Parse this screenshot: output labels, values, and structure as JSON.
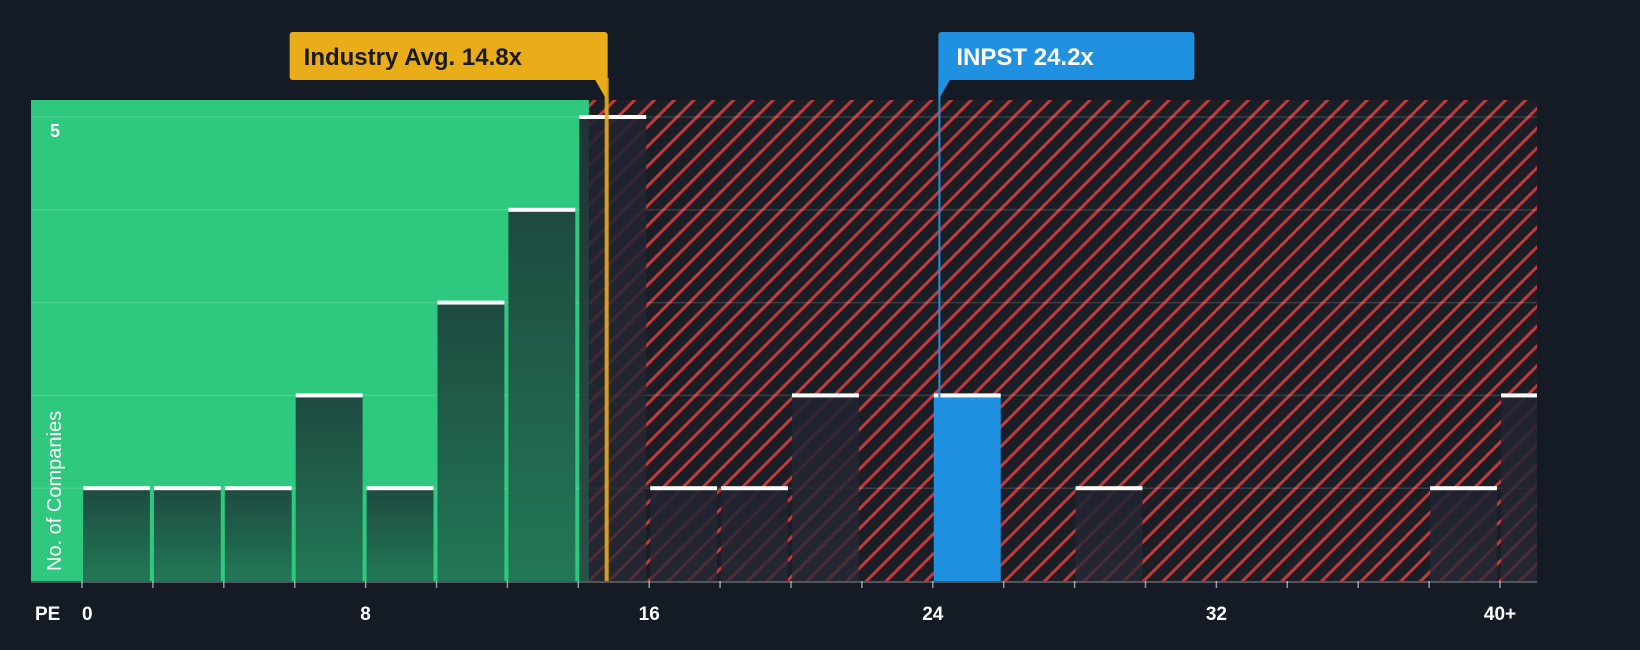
{
  "chart_data": {
    "type": "bar",
    "title": "",
    "xlabel": "PE",
    "ylabel": "No. of Companies",
    "x_tick_labels": [
      "0",
      "8",
      "16",
      "24",
      "32",
      "40+"
    ],
    "x_tick_values": [
      0,
      8,
      16,
      24,
      32,
      40
    ],
    "xlim": [
      0,
      41.2
    ],
    "ylim": [
      0,
      5.15
    ],
    "y_tick_labels": [
      "5"
    ],
    "y_tick_values": [
      5
    ],
    "y_gridlines": [
      1,
      2,
      3,
      4,
      5
    ],
    "bin_width": 2,
    "bins": [
      {
        "x0": 0,
        "value": 1,
        "region": "below"
      },
      {
        "x0": 2,
        "value": 1,
        "region": "below"
      },
      {
        "x0": 4,
        "value": 1,
        "region": "below"
      },
      {
        "x0": 6,
        "value": 2,
        "region": "below"
      },
      {
        "x0": 8,
        "value": 1,
        "region": "below"
      },
      {
        "x0": 10,
        "value": 3,
        "region": "below"
      },
      {
        "x0": 12,
        "value": 4,
        "region": "below"
      },
      {
        "x0": 14,
        "value": 5,
        "region": "above"
      },
      {
        "x0": 16,
        "value": 1,
        "region": "above"
      },
      {
        "x0": 18,
        "value": 1,
        "region": "above"
      },
      {
        "x0": 20,
        "value": 2,
        "region": "above"
      },
      {
        "x0": 24,
        "value": 2,
        "region": "highlight"
      },
      {
        "x0": 28,
        "value": 1,
        "region": "above"
      },
      {
        "x0": 38,
        "value": 1,
        "region": "above"
      },
      {
        "x0": 40,
        "value": 2,
        "region": "above"
      }
    ],
    "industry_avg": {
      "label": "Industry Avg. 14.8x",
      "value": 14.8
    },
    "company": {
      "label": "INPST 24.2x",
      "ticker": "INPST",
      "value": 24.2
    },
    "green_region_end": 14.3,
    "colors": {
      "background": "#151b24",
      "below_region": "#2ec97e",
      "below_bar": "#1f4a3f",
      "above_region": "#c03a3e",
      "above_bar": "#1e1f28",
      "highlight": "#2091e0",
      "industry_avg": "#e9ad19",
      "bar_cap": "#ffffff"
    }
  }
}
